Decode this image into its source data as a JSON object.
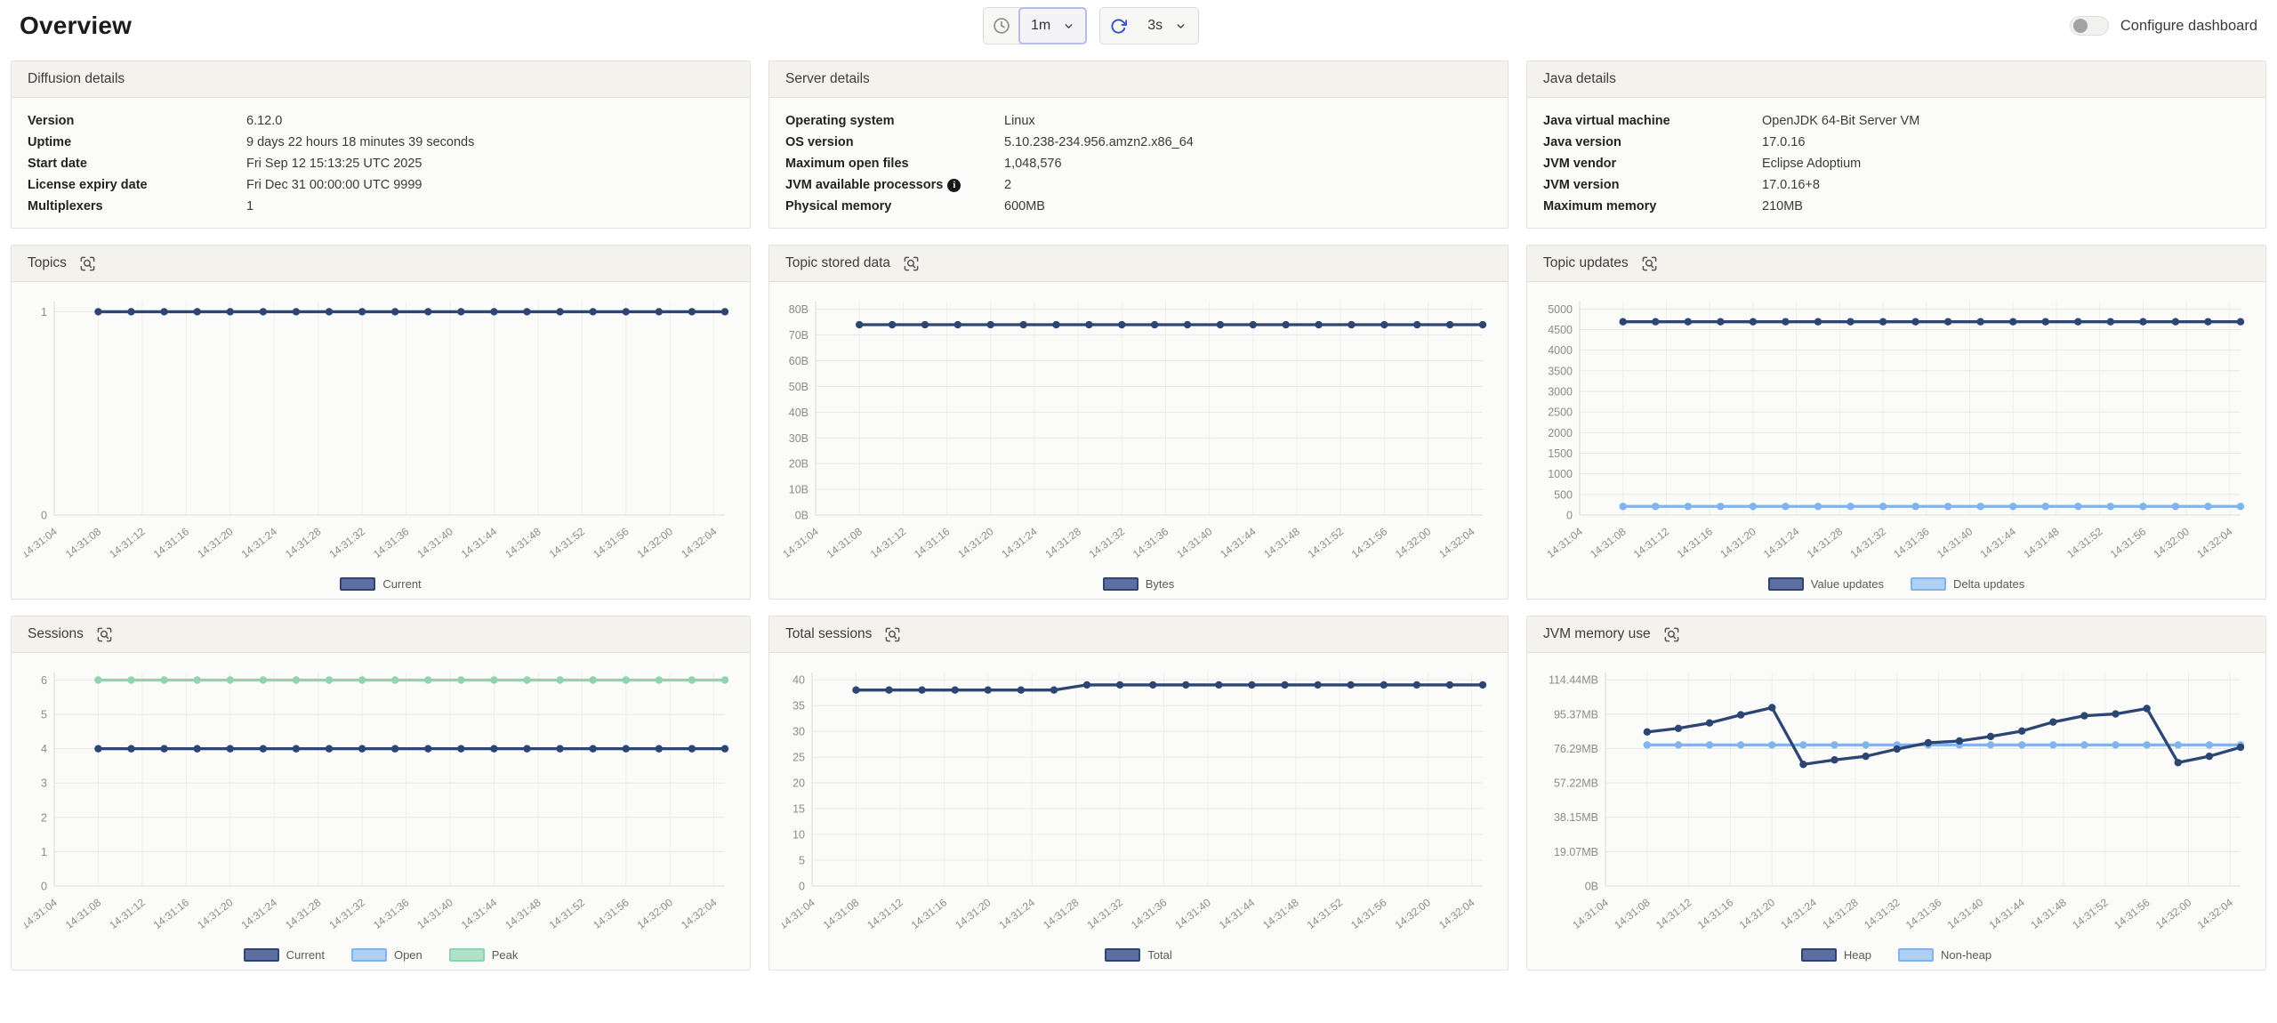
{
  "header": {
    "title": "Overview",
    "range_value": "1m",
    "refresh_value": "3s",
    "configure_label": "Configure dashboard",
    "toggle_state": "off"
  },
  "detail_panels": [
    {
      "title": "Diffusion details",
      "rows": [
        {
          "label": "Version",
          "value": "6.12.0"
        },
        {
          "label": "Uptime",
          "value": "9 days 22 hours 18 minutes 39 seconds"
        },
        {
          "label": "Start date",
          "value": "Fri Sep 12 15:13:25 UTC 2025"
        },
        {
          "label": "License expiry date",
          "value": "Fri Dec 31 00:00:00 UTC 9999"
        },
        {
          "label": "Multiplexers",
          "value": "1"
        }
      ]
    },
    {
      "title": "Server details",
      "rows": [
        {
          "label": "Operating system",
          "value": "Linux"
        },
        {
          "label": "OS version",
          "value": "5.10.238-234.956.amzn2.x86_64"
        },
        {
          "label": "Maximum open files",
          "value": "1,048,576"
        },
        {
          "label": "JVM available processors",
          "value": "2",
          "info": true
        },
        {
          "label": "Physical memory",
          "value": "600MB"
        }
      ]
    },
    {
      "title": "Java details",
      "rows": [
        {
          "label": "Java virtual machine",
          "value": "OpenJDK 64-Bit Server VM"
        },
        {
          "label": "Java version",
          "value": "17.0.16"
        },
        {
          "label": "JVM vendor",
          "value": "Eclipse Adoptium"
        },
        {
          "label": "JVM version",
          "value": "17.0.16+8"
        },
        {
          "label": "Maximum memory",
          "value": "210MB"
        }
      ]
    }
  ],
  "colors": {
    "navy": {
      "line": "#2d4572",
      "fill": "#5d6fa0"
    },
    "blue": {
      "line": "#7fb5ec",
      "fill": "#aed0f4"
    },
    "green": {
      "line": "#90d4af",
      "fill": "#aee2c9"
    }
  },
  "chart_data": {
    "type": "line",
    "x_labels": [
      "14:31:04",
      "14:31:08",
      "14:31:12",
      "14:31:16",
      "14:31:20",
      "14:31:24",
      "14:31:28",
      "14:31:32",
      "14:31:36",
      "14:31:40",
      "14:31:44",
      "14:31:48",
      "14:31:52",
      "14:31:56",
      "14:32:00",
      "14:32:04"
    ],
    "x_label_seconds": [
      0,
      4,
      8,
      12,
      16,
      20,
      24,
      28,
      32,
      36,
      40,
      44,
      48,
      52,
      56,
      60
    ],
    "point_seconds": [
      4,
      7,
      10,
      13,
      16,
      19,
      22,
      25,
      28,
      31,
      34,
      37,
      40,
      43,
      46,
      49,
      52,
      55,
      58,
      61
    ],
    "x_max_seconds": 61,
    "grid": true,
    "legend_position": "bottom",
    "charts": [
      {
        "title": "Topics",
        "ytick_values": [
          0,
          1
        ],
        "ytick_labels": [
          "0",
          "1"
        ],
        "ylim": [
          0,
          1.05
        ],
        "series": [
          {
            "name": "Current",
            "color": "navy",
            "values": [
              1,
              1,
              1,
              1,
              1,
              1,
              1,
              1,
              1,
              1,
              1,
              1,
              1,
              1,
              1,
              1,
              1,
              1,
              1,
              1
            ]
          }
        ]
      },
      {
        "title": "Topic stored data",
        "ytick_values": [
          0,
          10,
          20,
          30,
          40,
          50,
          60,
          70,
          80
        ],
        "ytick_labels": [
          "0B",
          "10B",
          "20B",
          "30B",
          "40B",
          "50B",
          "60B",
          "70B",
          "80B"
        ],
        "ylim": [
          0,
          83
        ],
        "series": [
          {
            "name": "Bytes",
            "color": "navy",
            "values": [
              74,
              74,
              74,
              74,
              74,
              74,
              74,
              74,
              74,
              74,
              74,
              74,
              74,
              74,
              74,
              74,
              74,
              74,
              74,
              74
            ]
          }
        ]
      },
      {
        "title": "Topic updates",
        "ytick_values": [
          0,
          500,
          1000,
          1500,
          2000,
          2500,
          3000,
          3500,
          4000,
          4500,
          5000
        ],
        "ytick_labels": [
          "0",
          "500",
          "1000",
          "1500",
          "2000",
          "2500",
          "3000",
          "3500",
          "4000",
          "4500",
          "5000"
        ],
        "ylim": [
          0,
          5180
        ],
        "series": [
          {
            "name": "Value updates",
            "color": "navy",
            "values": [
              4690,
              4690,
              4690,
              4690,
              4690,
              4690,
              4690,
              4690,
              4690,
              4690,
              4690,
              4690,
              4690,
              4690,
              4690,
              4690,
              4690,
              4690,
              4690,
              4690
            ]
          },
          {
            "name": "Delta updates",
            "color": "blue",
            "values": [
              210,
              210,
              210,
              210,
              210,
              210,
              210,
              210,
              210,
              210,
              210,
              210,
              210,
              210,
              210,
              210,
              210,
              210,
              210,
              210
            ]
          }
        ]
      },
      {
        "title": "Sessions",
        "ytick_values": [
          0,
          1,
          2,
          3,
          4,
          5,
          6
        ],
        "ytick_labels": [
          "0",
          "1",
          "2",
          "3",
          "4",
          "5",
          "6"
        ],
        "ylim": [
          0,
          6.22
        ],
        "series": [
          {
            "name": "Peak",
            "color": "green",
            "values": [
              6,
              6,
              6,
              6,
              6,
              6,
              6,
              6,
              6,
              6,
              6,
              6,
              6,
              6,
              6,
              6,
              6,
              6,
              6,
              6
            ]
          },
          {
            "name": "Open",
            "color": "blue",
            "values": [
              4,
              4,
              4,
              4,
              4,
              4,
              4,
              4,
              4,
              4,
              4,
              4,
              4,
              4,
              4,
              4,
              4,
              4,
              4,
              4
            ]
          },
          {
            "name": "Current",
            "color": "navy",
            "values": [
              4,
              4,
              4,
              4,
              4,
              4,
              4,
              4,
              4,
              4,
              4,
              4,
              4,
              4,
              4,
              4,
              4,
              4,
              4,
              4
            ]
          }
        ],
        "legend_order": [
          "Current",
          "Open",
          "Peak"
        ]
      },
      {
        "title": "Total sessions",
        "ytick_values": [
          0,
          5,
          10,
          15,
          20,
          25,
          30,
          35,
          40
        ],
        "ytick_labels": [
          "0",
          "5",
          "10",
          "15",
          "20",
          "25",
          "30",
          "35",
          "40"
        ],
        "ylim": [
          0,
          41.4
        ],
        "series": [
          {
            "name": "Total",
            "color": "navy",
            "values": [
              38,
              38,
              38,
              38,
              38,
              38,
              38,
              39,
              39,
              39,
              39,
              39,
              39,
              39,
              39,
              39,
              39,
              39,
              39,
              39
            ]
          }
        ]
      },
      {
        "title": "JVM memory use",
        "ytick_values": [
          0,
          19.07,
          38.15,
          57.22,
          76.29,
          95.37,
          114.44
        ],
        "ytick_labels": [
          "0B",
          "19.07MB",
          "38.15MB",
          "57.22MB",
          "76.29MB",
          "95.37MB",
          "114.44MB"
        ],
        "ylim": [
          0,
          118.5
        ],
        "series": [
          {
            "name": "Non-heap",
            "color": "blue",
            "values": [
              78.3,
              78.3,
              78.3,
              78.3,
              78.3,
              78.3,
              78.3,
              78.3,
              78.3,
              78.3,
              78.3,
              78.3,
              78.3,
              78.3,
              78.3,
              78.3,
              78.3,
              78.3,
              78.3,
              78.3
            ]
          },
          {
            "name": "Heap",
            "color": "navy",
            "values": [
              85.5,
              87.5,
              90.5,
              95,
              99,
              67.5,
              70,
              72,
              76,
              79.5,
              80.5,
              83,
              86,
              91,
              94.5,
              95.5,
              98.5,
              68.5,
              72,
              77
            ]
          }
        ],
        "legend_order": [
          "Heap",
          "Non-heap"
        ]
      }
    ]
  }
}
